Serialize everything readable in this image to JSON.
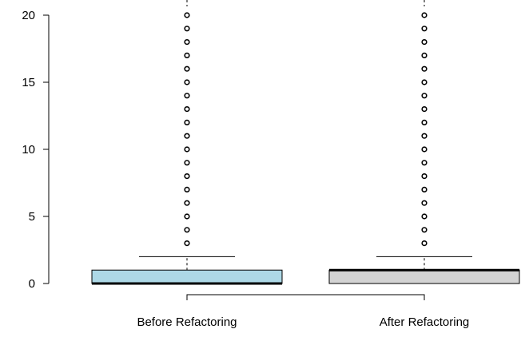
{
  "chart_data": {
    "type": "boxplot",
    "title": "",
    "xlabel": "",
    "ylabel": "",
    "ylim": [
      0,
      20
    ],
    "yticks": [
      0,
      5,
      10,
      15,
      20
    ],
    "grid": false,
    "categories": [
      "Before Refactoring",
      "After Refactoring"
    ],
    "boxes": [
      {
        "name": "Before Refactoring",
        "min": 0,
        "q1": 0,
        "median": 0,
        "q3": 1,
        "whisker_high": 2,
        "outliers": [
          3,
          4,
          5,
          6,
          7,
          8,
          9,
          10,
          11,
          12,
          13,
          14,
          15,
          16,
          17,
          18,
          19,
          20
        ],
        "whisker_continues_above_top": true,
        "fill": "#add8e6"
      },
      {
        "name": "After Refactoring",
        "min": 0,
        "q1": 0,
        "median": 1,
        "q3": 1,
        "whisker_high": 2,
        "outliers": [
          3,
          4,
          5,
          6,
          7,
          8,
          9,
          10,
          11,
          12,
          13,
          14,
          15,
          16,
          17,
          18,
          19,
          20
        ],
        "whisker_continues_above_top": true,
        "fill": "#d3d3d3"
      }
    ]
  }
}
